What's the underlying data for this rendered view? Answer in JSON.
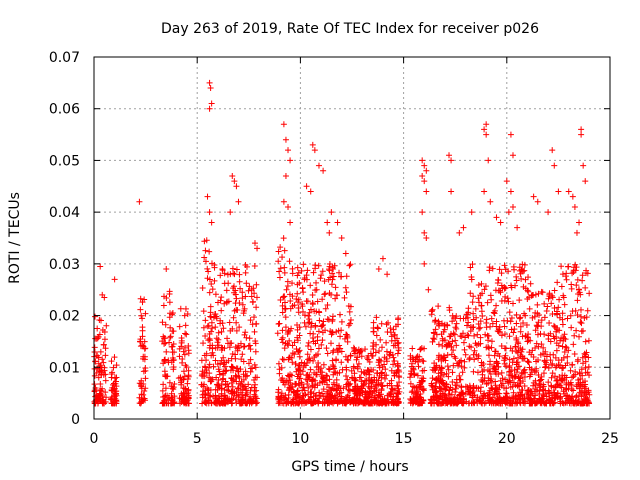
{
  "chart_data": {
    "type": "scatter",
    "title": "Day 263 of 2019, Rate Of TEC Index for receiver p026",
    "xlabel": "GPS time / hours",
    "ylabel": "ROTI / TECUs",
    "xlim": [
      0,
      25
    ],
    "ylim": [
      0,
      0.07
    ],
    "x_ticks": [
      "0",
      "5",
      "10",
      "15",
      "20",
      "25"
    ],
    "y_ticks": [
      "0",
      "0.01",
      "0.02",
      "0.03",
      "0.04",
      "0.05",
      "0.06",
      "0.07"
    ],
    "grid": true,
    "marker": "plus",
    "color": "#ff0000",
    "series": [
      {
        "segments": [
          {
            "x0": 0.0,
            "x1": 0.6,
            "ymax": 0.02
          },
          {
            "x0": 0.8,
            "x1": 1.1,
            "ymax": 0.012
          },
          {
            "x0": 2.2,
            "x1": 2.5,
            "ymax": 0.024
          },
          {
            "x0": 3.3,
            "x1": 3.9,
            "ymax": 0.025
          },
          {
            "x0": 4.1,
            "x1": 4.6,
            "ymax": 0.022
          },
          {
            "x0": 5.2,
            "x1": 5.8,
            "ymax": 0.035
          },
          {
            "x0": 5.8,
            "x1": 7.9,
            "ymax": 0.03
          },
          {
            "x0": 8.9,
            "x1": 9.5,
            "ymax": 0.035
          },
          {
            "x0": 9.5,
            "x1": 12.5,
            "ymax": 0.03
          },
          {
            "x0": 12.5,
            "x1": 13.5,
            "ymax": 0.014
          },
          {
            "x0": 13.5,
            "x1": 14.8,
            "ymax": 0.02
          },
          {
            "x0": 15.3,
            "x1": 16.0,
            "ymax": 0.014
          },
          {
            "x0": 16.3,
            "x1": 18.2,
            "ymax": 0.022
          },
          {
            "x0": 18.2,
            "x1": 21.2,
            "ymax": 0.03
          },
          {
            "x0": 21.2,
            "x1": 22.4,
            "ymax": 0.025
          },
          {
            "x0": 22.4,
            "x1": 24.0,
            "ymax": 0.03
          }
        ],
        "points": [
          [
            0.3,
            0.0295
          ],
          [
            0.4,
            0.024
          ],
          [
            0.5,
            0.0235
          ],
          [
            1.0,
            0.027
          ],
          [
            2.2,
            0.042
          ],
          [
            3.5,
            0.029
          ],
          [
            5.6,
            0.065
          ],
          [
            5.65,
            0.064
          ],
          [
            5.7,
            0.061
          ],
          [
            5.6,
            0.06
          ],
          [
            5.5,
            0.043
          ],
          [
            5.6,
            0.04
          ],
          [
            5.7,
            0.038
          ],
          [
            6.7,
            0.047
          ],
          [
            6.8,
            0.046
          ],
          [
            6.9,
            0.045
          ],
          [
            7.0,
            0.042
          ],
          [
            6.6,
            0.04
          ],
          [
            7.8,
            0.034
          ],
          [
            7.9,
            0.033
          ],
          [
            9.2,
            0.057
          ],
          [
            9.3,
            0.054
          ],
          [
            9.4,
            0.052
          ],
          [
            9.5,
            0.05
          ],
          [
            9.2,
            0.042
          ],
          [
            9.4,
            0.041
          ],
          [
            9.5,
            0.038
          ],
          [
            9.3,
            0.047
          ],
          [
            10.3,
            0.045
          ],
          [
            10.5,
            0.044
          ],
          [
            10.6,
            0.053
          ],
          [
            10.7,
            0.052
          ],
          [
            10.9,
            0.049
          ],
          [
            11.1,
            0.048
          ],
          [
            11.3,
            0.038
          ],
          [
            11.4,
            0.036
          ],
          [
            11.5,
            0.04
          ],
          [
            11.8,
            0.038
          ],
          [
            12.0,
            0.035
          ],
          [
            12.2,
            0.032
          ],
          [
            13.8,
            0.029
          ],
          [
            14.0,
            0.031
          ],
          [
            14.2,
            0.028
          ],
          [
            15.9,
            0.05
          ],
          [
            16.0,
            0.049
          ],
          [
            16.1,
            0.048
          ],
          [
            15.9,
            0.047
          ],
          [
            16.0,
            0.046
          ],
          [
            16.1,
            0.044
          ],
          [
            15.9,
            0.04
          ],
          [
            16.0,
            0.036
          ],
          [
            16.1,
            0.035
          ],
          [
            16.0,
            0.03
          ],
          [
            16.2,
            0.025
          ],
          [
            17.2,
            0.051
          ],
          [
            17.3,
            0.05
          ],
          [
            17.3,
            0.044
          ],
          [
            17.7,
            0.036
          ],
          [
            17.9,
            0.037
          ],
          [
            18.3,
            0.04
          ],
          [
            18.9,
            0.056
          ],
          [
            19.0,
            0.057
          ],
          [
            19.0,
            0.055
          ],
          [
            19.1,
            0.05
          ],
          [
            18.9,
            0.044
          ],
          [
            19.2,
            0.042
          ],
          [
            19.5,
            0.039
          ],
          [
            19.7,
            0.038
          ],
          [
            20.0,
            0.046
          ],
          [
            20.2,
            0.044
          ],
          [
            20.3,
            0.051
          ],
          [
            20.2,
            0.055
          ],
          [
            20.1,
            0.04
          ],
          [
            20.3,
            0.041
          ],
          [
            20.5,
            0.037
          ],
          [
            21.3,
            0.043
          ],
          [
            21.5,
            0.042
          ],
          [
            22.2,
            0.052
          ],
          [
            22.3,
            0.049
          ],
          [
            22.5,
            0.044
          ],
          [
            22.0,
            0.04
          ],
          [
            23.0,
            0.044
          ],
          [
            23.2,
            0.043
          ],
          [
            23.3,
            0.041
          ],
          [
            23.6,
            0.056
          ],
          [
            23.6,
            0.055
          ],
          [
            23.7,
            0.049
          ],
          [
            23.8,
            0.046
          ],
          [
            23.5,
            0.038
          ],
          [
            23.4,
            0.036
          ]
        ]
      }
    ]
  }
}
